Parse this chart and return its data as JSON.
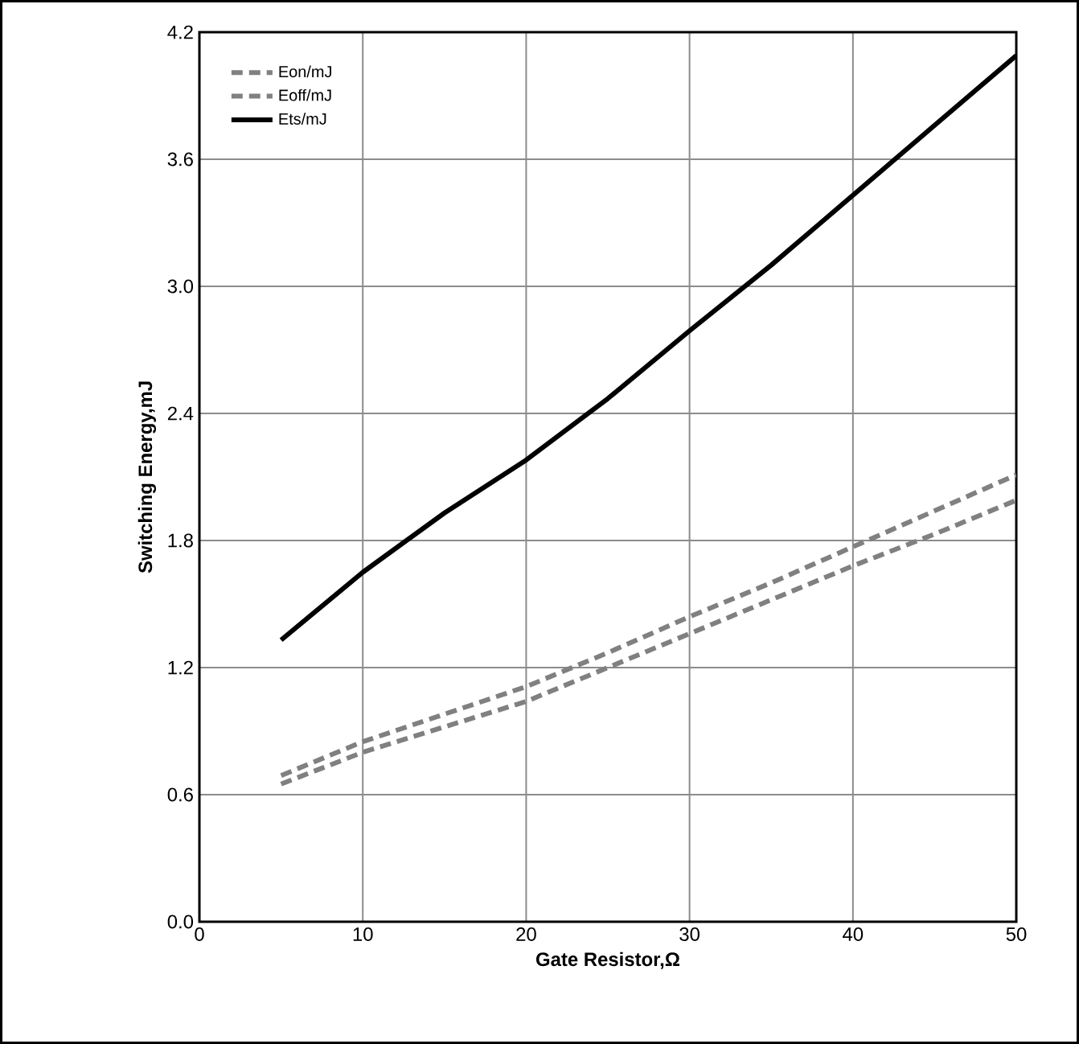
{
  "chart_data": {
    "type": "line",
    "xlabel": "Gate Resistor,Ω",
    "ylabel": "Switching Energy,mJ",
    "x": [
      5,
      10,
      15,
      20,
      25,
      30,
      35,
      40,
      45,
      50
    ],
    "series": [
      {
        "name": "Eon/mJ",
        "color": "#808080",
        "line_style": "dashed",
        "values": [
          0.65,
          0.8,
          0.92,
          1.04,
          1.2,
          1.36,
          1.52,
          1.68,
          1.83,
          1.99
        ]
      },
      {
        "name": "Eoff/mJ",
        "color": "#808080",
        "line_style": "dashed",
        "values": [
          0.69,
          0.85,
          0.98,
          1.11,
          1.27,
          1.44,
          1.6,
          1.77,
          1.94,
          2.11
        ]
      },
      {
        "name": "Ets/mJ",
        "color": "#000000",
        "line_style": "solid",
        "values": [
          1.33,
          1.65,
          1.93,
          2.18,
          2.47,
          2.79,
          3.1,
          3.43,
          3.76,
          4.09
        ]
      }
    ],
    "xlim": [
      0,
      50
    ],
    "ylim": [
      0,
      4.2
    ],
    "xticks": [
      0,
      10,
      20,
      30,
      40,
      50
    ],
    "yticks": [
      {
        "value": 0,
        "label": "0.0"
      },
      {
        "value": 0.6,
        "label": "0.6"
      },
      {
        "value": 1.2,
        "label": "1.2"
      },
      {
        "value": 1.8,
        "label": "1.8"
      },
      {
        "value": 2.4,
        "label": "2.4"
      },
      {
        "value": 3.0,
        "label": "3.0"
      },
      {
        "value": 3.6,
        "label": "3.6"
      },
      {
        "value": 4.2,
        "label": "4.2"
      }
    ],
    "grid": true,
    "legend": "top left",
    "marker": "none"
  }
}
